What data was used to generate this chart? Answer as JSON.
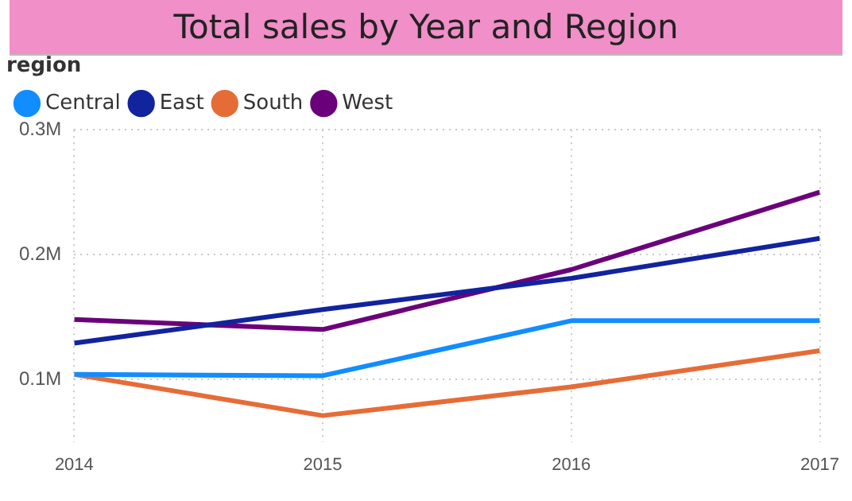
{
  "chart_data": {
    "type": "line",
    "title": "Total sales by Year and Region",
    "legend_title": "region",
    "x": [
      2014,
      2015,
      2016,
      2017
    ],
    "xlim": [
      2014,
      2017
    ],
    "xticks": [
      2014,
      2015,
      2016,
      2017
    ],
    "ylim": [
      0.05,
      0.3
    ],
    "yticks": [
      {
        "value": 0.1,
        "label": "0.1M"
      },
      {
        "value": 0.2,
        "label": "0.2M"
      },
      {
        "value": 0.3,
        "label": "0.3M"
      }
    ],
    "series": [
      {
        "name": "Central",
        "color": "#118dff",
        "values": [
          0.104,
          0.103,
          0.147,
          0.147
        ]
      },
      {
        "name": "East",
        "color": "#12239e",
        "values": [
          0.129,
          0.156,
          0.181,
          0.213
        ]
      },
      {
        "name": "South",
        "color": "#e66c37",
        "values": [
          0.104,
          0.071,
          0.094,
          0.123
        ]
      },
      {
        "name": "West",
        "color": "#6b007b",
        "values": [
          0.148,
          0.14,
          0.188,
          0.25
        ]
      }
    ],
    "grid": true,
    "legend": "top left",
    "marker": "none",
    "line_style": "solid"
  }
}
